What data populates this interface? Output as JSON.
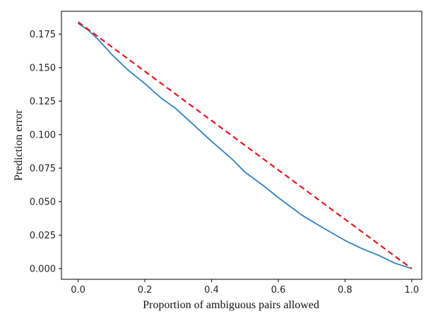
{
  "chart_data": {
    "type": "line",
    "title": "",
    "xlabel": "Proportion of ambiguous pairs allowed",
    "ylabel": "Prediction error",
    "xlim": [
      -0.05,
      1.03
    ],
    "ylim": [
      -0.008,
      0.192
    ],
    "xticks": [
      0.0,
      0.2,
      0.4,
      0.6,
      0.8,
      1.0
    ],
    "xtick_labels": [
      "0.0",
      "0.2",
      "0.4",
      "0.6",
      "0.8",
      "1.0"
    ],
    "yticks": [
      0.0,
      0.025,
      0.05,
      0.075,
      0.1,
      0.125,
      0.15,
      0.175
    ],
    "ytick_labels": [
      "0.000",
      "0.025",
      "0.050",
      "0.075",
      "0.100",
      "0.125",
      "0.150",
      "0.175"
    ],
    "grid": false,
    "legend": "none",
    "series": [
      {
        "style": "solid",
        "color": "#2f7fbf",
        "x": [
          0.0,
          0.03,
          0.06,
          0.1,
          0.15,
          0.2,
          0.25,
          0.29,
          0.33,
          0.4,
          0.46,
          0.5,
          0.56,
          0.6,
          0.67,
          0.73,
          0.8,
          0.85,
          0.9,
          0.95,
          1.0
        ],
        "y": [
          0.183,
          0.178,
          0.171,
          0.16,
          0.148,
          0.138,
          0.127,
          0.12,
          0.111,
          0.095,
          0.082,
          0.072,
          0.061,
          0.053,
          0.04,
          0.031,
          0.021,
          0.015,
          0.01,
          0.004,
          0.0
        ]
      },
      {
        "style": "dashed",
        "color": "#e8141b",
        "x": [
          0.0,
          1.0
        ],
        "y": [
          0.184,
          0.0
        ]
      }
    ]
  }
}
